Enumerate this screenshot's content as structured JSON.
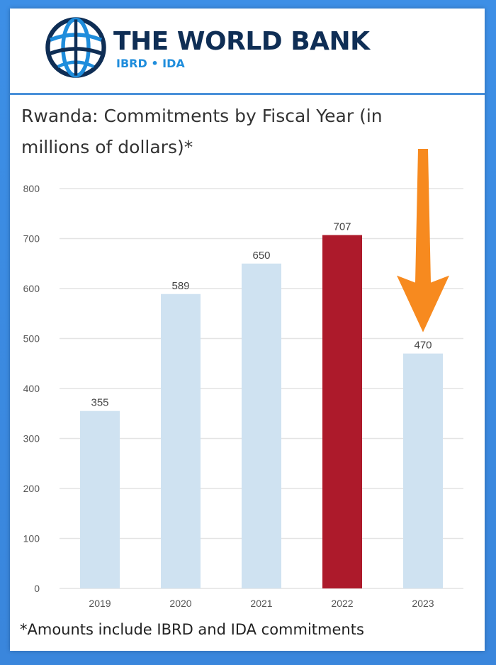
{
  "header": {
    "brand_name": "THE WORLD BANK",
    "brand_sub": "IBRD • IDA",
    "logo_icon": "world-bank-globe-icon"
  },
  "chart_data": {
    "type": "bar",
    "title": "Rwanda: Commitments by Fiscal Year (in millions of dollars)*",
    "categories": [
      "2019",
      "2020",
      "2021",
      "2022",
      "2023"
    ],
    "values": [
      355,
      589,
      650,
      707,
      470
    ],
    "data_labels": [
      "355",
      "589",
      "650",
      "707",
      "470"
    ],
    "ylim": [
      0,
      800
    ],
    "yticks": [
      0,
      100,
      200,
      300,
      400,
      500,
      600,
      700,
      800
    ],
    "grid": true,
    "xlabel": "",
    "ylabel": "",
    "colors": {
      "default_bar": "#cfe2f1",
      "highlight_bar": "#ad1a2b",
      "highlight_index": 3,
      "arrow": "#f78a1f",
      "grid": "#e4e4e4"
    },
    "annotation": {
      "type": "arrow",
      "points_to": "2023"
    }
  },
  "footnote": "*Amounts include IBRD and IDA commitments"
}
